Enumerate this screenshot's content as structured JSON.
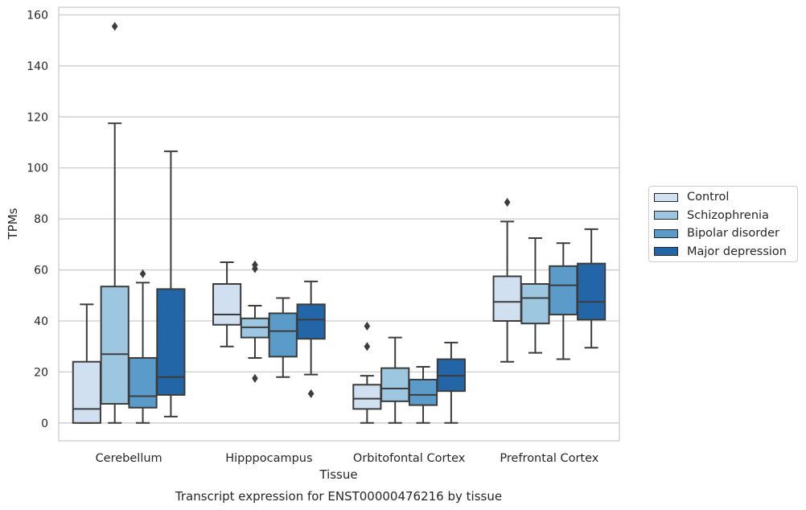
{
  "chart_data": {
    "type": "box",
    "caption": "Transcript expression for ENST00000476216 by tissue",
    "xlabel": "Tissue",
    "ylabel": "TPMs",
    "ylim": [
      -7,
      163
    ],
    "yticks": [
      0,
      20,
      40,
      60,
      80,
      100,
      120,
      140,
      160
    ],
    "grid": true,
    "legend_position": "right",
    "categories": [
      "Cerebellum",
      "Hipppocampus",
      "Orbitofontal Cortex",
      "Prefrontal Cortex"
    ],
    "series": [
      {
        "name": "Control",
        "color": "#d0e0f0",
        "boxes": [
          {
            "min": 0,
            "q1": 0,
            "median": 5.5,
            "q3": 24,
            "max": 46.5,
            "outliers": []
          },
          {
            "min": 30,
            "q1": 38.5,
            "median": 42.5,
            "q3": 54.5,
            "max": 63,
            "outliers": []
          },
          {
            "min": 0,
            "q1": 5.5,
            "median": 9.5,
            "q3": 15,
            "max": 18.5,
            "outliers": [
              30,
              38
            ]
          },
          {
            "min": 24,
            "q1": 40,
            "median": 47.5,
            "q3": 57.5,
            "max": 79,
            "outliers": [
              86.5
            ]
          }
        ]
      },
      {
        "name": "Schizophrenia",
        "color": "#9dc6e0",
        "boxes": [
          {
            "min": 0,
            "q1": 7.5,
            "median": 27,
            "q3": 53.5,
            "max": 117.5,
            "outliers": [
              155.5
            ]
          },
          {
            "min": 25.5,
            "q1": 33.5,
            "median": 37.5,
            "q3": 41,
            "max": 46,
            "outliers": [
              17.5,
              60.5,
              62
            ]
          },
          {
            "min": 0,
            "q1": 8.5,
            "median": 13.5,
            "q3": 21.5,
            "max": 33.5,
            "outliers": []
          },
          {
            "min": 27.5,
            "q1": 39,
            "median": 49,
            "q3": 54.5,
            "max": 72.5,
            "outliers": []
          }
        ]
      },
      {
        "name": "Bipolar disorder",
        "color": "#5a9bc9",
        "boxes": [
          {
            "min": 0,
            "q1": 6,
            "median": 10.5,
            "q3": 25.5,
            "max": 55,
            "outliers": [
              58.5
            ]
          },
          {
            "min": 18,
            "q1": 26,
            "median": 36,
            "q3": 43,
            "max": 49,
            "outliers": []
          },
          {
            "min": 0,
            "q1": 7,
            "median": 11,
            "q3": 17,
            "max": 22,
            "outliers": []
          },
          {
            "min": 25,
            "q1": 42.5,
            "median": 54,
            "q3": 61.5,
            "max": 70.5,
            "outliers": []
          }
        ]
      },
      {
        "name": "Major depression",
        "color": "#2366a8",
        "boxes": [
          {
            "min": 2.5,
            "q1": 11,
            "median": 18,
            "q3": 52.5,
            "max": 106.5,
            "outliers": []
          },
          {
            "min": 19,
            "q1": 33,
            "median": 40.5,
            "q3": 46.5,
            "max": 55.5,
            "outliers": [
              11.5
            ]
          },
          {
            "min": 0,
            "q1": 12.5,
            "median": 18.5,
            "q3": 25,
            "max": 31.5,
            "outliers": []
          },
          {
            "min": 29.5,
            "q1": 40.5,
            "median": 47.5,
            "q3": 62.5,
            "max": 76,
            "outliers": []
          }
        ]
      }
    ]
  }
}
